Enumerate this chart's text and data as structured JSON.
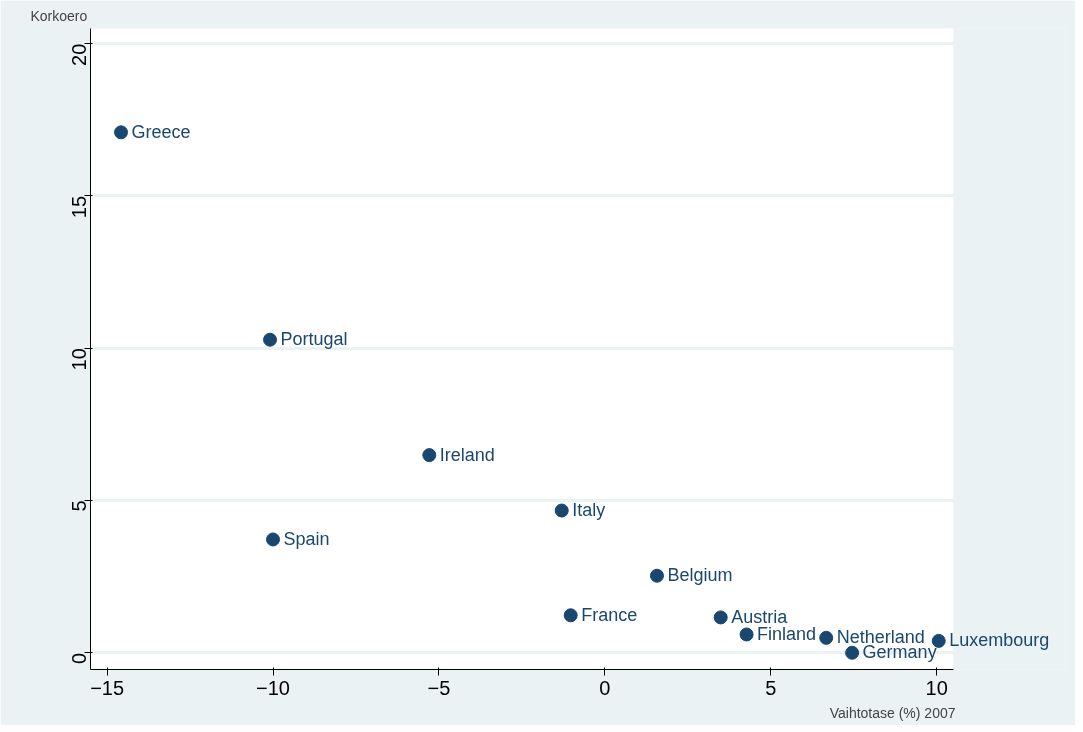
{
  "chart_data": {
    "type": "scatter",
    "xlabel": "Vaihtotase (%) 2007",
    "ylabel": "Korkoero",
    "x": [
      -14.58,
      -10.09,
      -5.29,
      -1.3,
      -10.0,
      1.57,
      -1.03,
      3.49,
      4.27,
      6.67,
      7.45,
      10.06
    ],
    "series": [
      {
        "color": "#1a476f",
        "values": [
          17.09,
          10.28,
          6.49,
          4.67,
          3.72,
          2.53,
          1.23,
          1.16,
          0.6,
          0.49,
          0.0,
          0.39
        ]
      }
    ],
    "annotations": [
      {
        "text": "Greece",
        "x": -14.58,
        "y": 17.09
      },
      {
        "text": "Portugal",
        "x": -10.09,
        "y": 10.28
      },
      {
        "text": "Ireland",
        "x": -5.29,
        "y": 6.49
      },
      {
        "text": "Italy",
        "x": -1.3,
        "y": 4.67
      },
      {
        "text": "Spain",
        "x": -10.0,
        "y": 3.72
      },
      {
        "text": "Belgium",
        "x": 1.57,
        "y": 2.53
      },
      {
        "text": "France",
        "x": -1.03,
        "y": 1.23
      },
      {
        "text": "Austria",
        "x": 3.49,
        "y": 1.16
      },
      {
        "text": "Finland",
        "x": 4.27,
        "y": 0.6
      },
      {
        "text": "Netherland",
        "x": 6.67,
        "y": 0.49
      },
      {
        "text": "Germany",
        "x": 7.45,
        "y": 0.0
      },
      {
        "text": "Luxembourg",
        "x": 10.06,
        "y": 0.39
      }
    ],
    "xlim": [
      -15.5,
      10.5
    ],
    "ylim": [
      -0.55,
      20.5
    ],
    "xticks": [
      -15,
      -10,
      -5,
      0,
      5,
      10
    ],
    "yticks": [
      0,
      5,
      10,
      15,
      20
    ],
    "grid": "y",
    "marker": "circle"
  }
}
